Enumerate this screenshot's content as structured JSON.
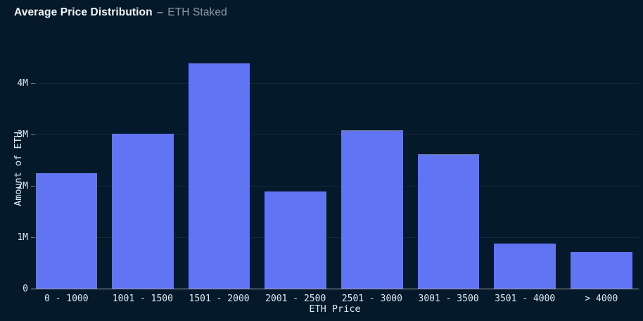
{
  "header": {
    "title": "Average Price Distribution",
    "separator": "–",
    "subtitle": "ETH Staked"
  },
  "chart_data": {
    "type": "bar",
    "title": "Average Price Distribution – ETH Staked",
    "categories": [
      "0 - 1000",
      "1001 - 1500",
      "1501 - 2000",
      "2001 - 2500",
      "2501 - 3000",
      "3001 - 3500",
      "3501 - 4000",
      "> 4000"
    ],
    "values": [
      2.25,
      3.01,
      4.39,
      1.89,
      3.08,
      2.62,
      0.88,
      0.71
    ],
    "value_unit": "M ETH",
    "xlabel": "ETH Price",
    "ylabel": "Amount of ETH",
    "yticks": [
      {
        "label": "0",
        "value": 0
      },
      {
        "label": "1M",
        "value": 1
      },
      {
        "label": "2M",
        "value": 2
      },
      {
        "label": "3M",
        "value": 3
      },
      {
        "label": "4M",
        "value": 4
      }
    ],
    "ylim": [
      0,
      5
    ],
    "grid": "horizontal",
    "legend": "none",
    "colors": {
      "background": "#041a2b",
      "bar": "#6174f4",
      "gridline": "#11293b",
      "axis_line": "#b9c4cc",
      "tick_text": "#dce8f2",
      "title_text": "#f2f6f9",
      "separator_text": "#c3ced8",
      "subtitle_text": "#8d9aa6"
    }
  }
}
